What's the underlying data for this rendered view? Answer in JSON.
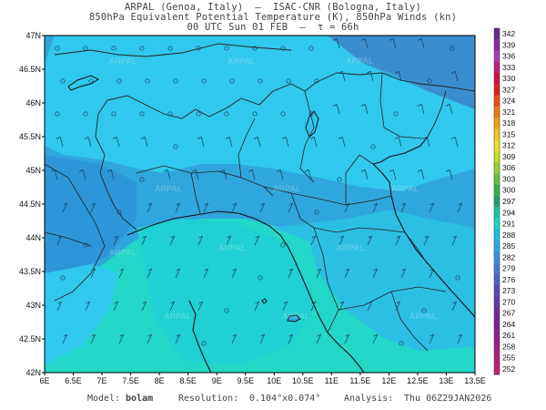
{
  "header": {
    "line1": "ARPAL (Genoa, Italy)  —  ISAC-CNR (Bologna, Italy)",
    "line2": "850hPa Equivalent Potential Temperature (K), 850hPa Winds (kn)",
    "line3": "00 UTC Sun 01 FEB  —  τ = 66h"
  },
  "lat_labels": [
    "47N",
    "46.5N",
    "46N",
    "45.5N",
    "45N",
    "44.5N",
    "44N",
    "43.5N",
    "43N",
    "42.5N",
    "42N"
  ],
  "lon_labels": [
    "6E",
    "6.5E",
    "7E",
    "7.5E",
    "8E",
    "8.5E",
    "9E",
    "9.5E",
    "10E",
    "10.5E",
    "11E",
    "11.5E",
    "12E",
    "12.5E",
    "13E",
    "13.5E"
  ],
  "colorbar": {
    "labels": [
      "342",
      "339",
      "336",
      "333",
      "330",
      "327",
      "324",
      "321",
      "318",
      "315",
      "312",
      "309",
      "306",
      "303",
      "300",
      "297",
      "294",
      "291",
      "288",
      "285",
      "282",
      "279",
      "276",
      "273",
      "270",
      "267",
      "264",
      "261",
      "258",
      "255",
      "252"
    ],
    "colors": [
      "#6a2a8a",
      "#8a2aa0",
      "#b03ab0",
      "#c0207a",
      "#d01040",
      "#e02020",
      "#f04a10",
      "#f07810",
      "#f0a010",
      "#f0c820",
      "#e8e020",
      "#c8e020",
      "#98d030",
      "#68c040",
      "#30b050",
      "#20a070",
      "#10c8a0",
      "#10d8c8",
      "#18c0e0",
      "#28a8e8",
      "#3890e0",
      "#4878d8",
      "#5060c8",
      "#5848b8",
      "#6038a8",
      "#702898",
      "#802090",
      "#902088",
      "#a02080",
      "#b02078",
      "#c02070"
    ],
    "highlight_labels": [
      "297",
      "294",
      "291"
    ]
  },
  "map_colors": {
    "t300": "#30c8ee",
    "t297": "#2fa6dd",
    "t294": "#3a8ed0",
    "t291": "#14d8c4",
    "t288": "#22e6d8",
    "coast": "#111111",
    "border": "#222222"
  },
  "watermark": "ARPAL",
  "footer": {
    "model_label": "Model:",
    "model_value": "bolam",
    "resolution_label": "Resolution:",
    "resolution_value": "0.104°x0.074°",
    "analysis_label": "Analysis:",
    "analysis_value": "Thu 06Z29JAN2026"
  }
}
